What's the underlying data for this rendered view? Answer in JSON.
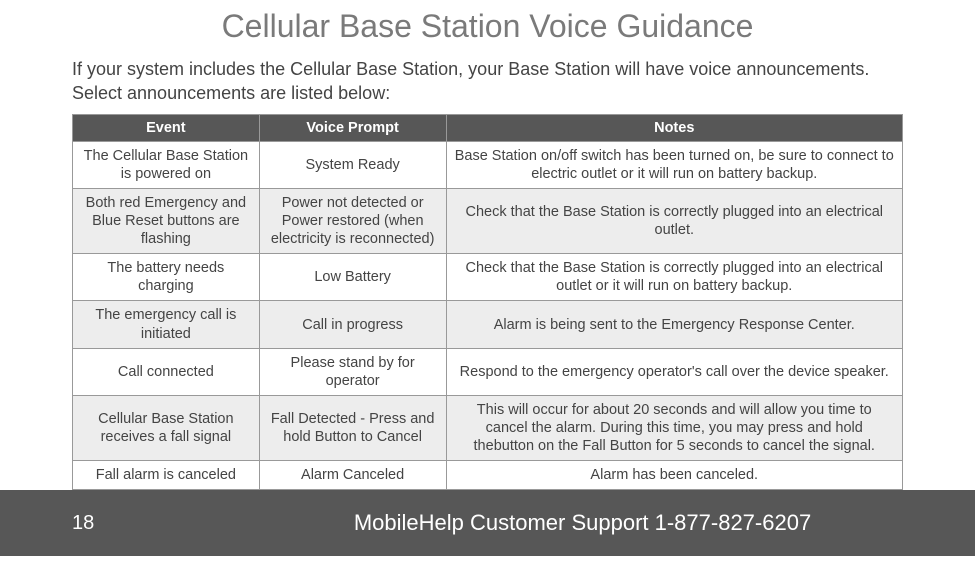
{
  "title": "Cellular Base Station Voice Guidance",
  "intro": "If your system includes the Cellular Base Station, your Base Station will have voice announcements. Select announcements are listed below:",
  "table": {
    "columns": [
      "Event",
      "Voice Prompt",
      "Notes"
    ],
    "col_widths_pct": [
      22.5,
      22.5,
      55
    ],
    "header_bg": "#575757",
    "header_color": "#ffffff",
    "border_color": "#999999",
    "alt_row_bg": "#ededed",
    "rows": [
      {
        "event": "The Cellular Base Station is powered on",
        "prompt": "System Ready",
        "notes": "Base Station on/off switch has been turned on, be sure to connect to electric outlet or it will run on battery backup."
      },
      {
        "event": "Both red Emergency and Blue Reset buttons are flashing",
        "prompt": "Power not detected or Power restored (when electricity is reconnected)",
        "notes": "Check that the Base Station is correctly plugged into an electrical outlet."
      },
      {
        "event": "The battery needs charging",
        "prompt": "Low Battery",
        "notes": "Check that the Base Station is correctly plugged into an electrical outlet or it will run on battery backup."
      },
      {
        "event": "The emergency call is initiated",
        "prompt": "Call in progress",
        "notes": "Alarm is being sent to the Emergency Response Center."
      },
      {
        "event": "Call connected",
        "prompt": "Please stand by for operator",
        "notes": "Respond to the emergency operator's call over the device speaker."
      },
      {
        "event": "Cellular Base Station receives a fall signal",
        "prompt": "Fall Detected - Press and hold Button to Cancel",
        "notes": "This will occur for about 20 seconds and will allow you time to cancel the alarm. During this time, you may press and hold thebutton on the Fall Button for 5 seconds to cancel the signal."
      },
      {
        "event": "Fall alarm is canceled",
        "prompt": "Alarm Canceled",
        "notes": "Alarm has been canceled."
      }
    ]
  },
  "footer": {
    "page_number": "18",
    "text": "MobileHelp Customer Support 1-877-827-6207",
    "bg": "#575757",
    "color": "#ffffff"
  },
  "colors": {
    "title_color": "#7a7a7a",
    "body_text": "#444444",
    "background": "#ffffff"
  },
  "fonts": {
    "title_size_pt": 24,
    "intro_size_pt": 13.5,
    "table_size_pt": 11,
    "footer_size_pt": 16.5
  }
}
